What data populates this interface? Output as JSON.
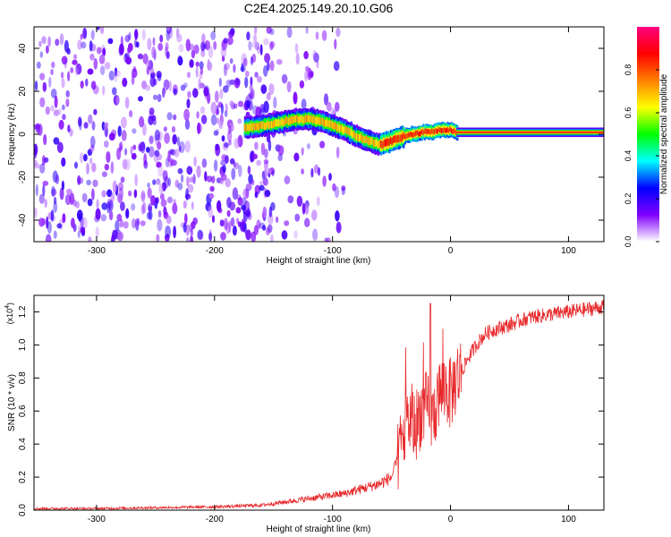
{
  "title": "C2E4.2025.149.20.10.G06",
  "chart_data": [
    {
      "type": "heatmap",
      "xlabel": "Height of straight line (km)",
      "ylabel": "Frequency (Hz)",
      "xlim": [
        -353,
        130
      ],
      "ylim": [
        -50,
        50
      ],
      "xticks": [
        -300,
        -200,
        -100,
        0,
        100
      ],
      "yticks": [
        -40,
        -20,
        0,
        20,
        40
      ],
      "xtick_labels": [
        "-300",
        "-200",
        "-100",
        "0",
        "100"
      ],
      "ytick_labels": [
        "-40",
        "-20",
        "0",
        "20",
        "40"
      ],
      "colorbar": {
        "label": "Normalized spectral amplitude",
        "range": [
          0,
          1
        ],
        "ticks": [
          0.0,
          0.2,
          0.4,
          0.6,
          0.8
        ],
        "tick_labels": [
          "0.0",
          "0.2",
          "0.4",
          "0.6",
          "0.8"
        ],
        "colormap": [
          "#ffffff",
          "#8000ff",
          "#0000ff",
          "#00ffff",
          "#00ff00",
          "#ffff00",
          "#ff8000",
          "#ff0000",
          "#ff0080"
        ]
      },
      "ridge": {
        "x": [
          -175,
          -160,
          -150,
          -140,
          -130,
          -120,
          -110,
          -100,
          -90,
          -80,
          -70,
          -60,
          -55,
          -50,
          -45,
          -40,
          -35,
          -30,
          -25,
          -20,
          -15,
          -10,
          -5,
          0,
          5,
          130
        ],
        "y": [
          3,
          4,
          5,
          6,
          7,
          7,
          6,
          4,
          2,
          -1,
          -3,
          -5,
          -4,
          -3,
          -2,
          -1,
          0,
          0,
          1,
          1,
          1,
          2,
          2,
          2,
          1,
          0.8
        ]
      },
      "noise_region": [
        -353,
        -150
      ]
    },
    {
      "type": "line",
      "xlabel": "Height of straight line (km)",
      "ylabel": "SNR (10 * v/v)",
      "scale_label": "(x10",
      "scale_exp": "4",
      "scale_close": ")",
      "xlim": [
        -353,
        130
      ],
      "ylim": [
        0,
        1.3
      ],
      "xticks": [
        -300,
        -200,
        -100,
        0,
        100
      ],
      "yticks": [
        0.0,
        0.2,
        0.4,
        0.6,
        0.8,
        1.0,
        1.2
      ],
      "xtick_labels": [
        "-300",
        "-200",
        "-100",
        "0",
        "100"
      ],
      "ytick_labels": [
        "0.0",
        "0.2",
        "0.4",
        "0.6",
        "0.8",
        "1.0",
        "1.2"
      ],
      "color": "#e8292b",
      "series": [
        {
          "x": [
            -353,
            -300,
            -250,
            -200,
            -180,
            -160,
            -150,
            -140,
            -130,
            -120,
            -110,
            -100,
            -90,
            -80,
            -70,
            -60,
            -50,
            -45,
            -40,
            -35,
            -30,
            -25,
            -20,
            -15,
            -10,
            -5,
            0,
            5,
            10,
            15,
            20,
            25,
            30,
            40,
            50,
            60,
            70,
            80,
            90,
            100,
            110,
            120,
            130
          ],
          "y": [
            0.01,
            0.01,
            0.015,
            0.02,
            0.025,
            0.03,
            0.04,
            0.05,
            0.06,
            0.07,
            0.08,
            0.09,
            0.1,
            0.12,
            0.14,
            0.16,
            0.2,
            0.3,
            0.45,
            0.55,
            0.5,
            0.6,
            0.62,
            0.55,
            0.7,
            0.75,
            0.7,
            0.8,
            0.85,
            0.92,
            0.98,
            1.03,
            1.07,
            1.1,
            1.12,
            1.15,
            1.17,
            1.18,
            1.19,
            1.2,
            1.21,
            1.22,
            1.23
          ]
        }
      ]
    }
  ]
}
